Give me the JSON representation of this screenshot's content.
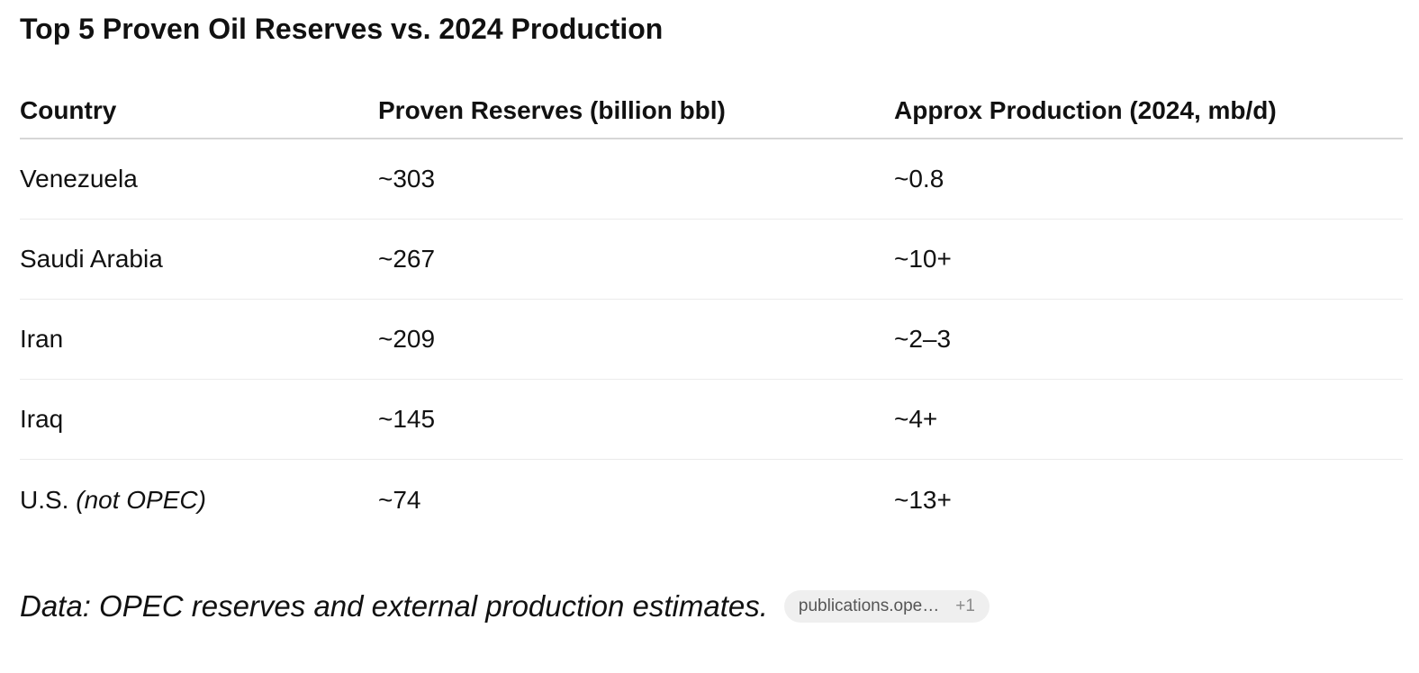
{
  "title": "Top 5 Proven Oil Reserves vs. 2024 Production",
  "table": {
    "headers": [
      "Country",
      "Proven Reserves (billion bbl)",
      "Approx Production (2024, mb/d)"
    ],
    "rows": [
      {
        "country": "Venezuela",
        "note": "",
        "reserves": "~303",
        "production": "~0.8"
      },
      {
        "country": "Saudi Arabia",
        "note": "",
        "reserves": "~267",
        "production": "~10+"
      },
      {
        "country": "Iran",
        "note": "",
        "reserves": "~209",
        "production": "~2–3"
      },
      {
        "country": "Iraq",
        "note": "",
        "reserves": "~145",
        "production": "~4+"
      },
      {
        "country": "U.S.",
        "note": "(not OPEC)",
        "reserves": "~74",
        "production": "~13+"
      }
    ]
  },
  "footer": {
    "text": "Data: OPEC reserves and external production estimates.",
    "source_label": "publications.ope…",
    "source_more": "+1"
  }
}
